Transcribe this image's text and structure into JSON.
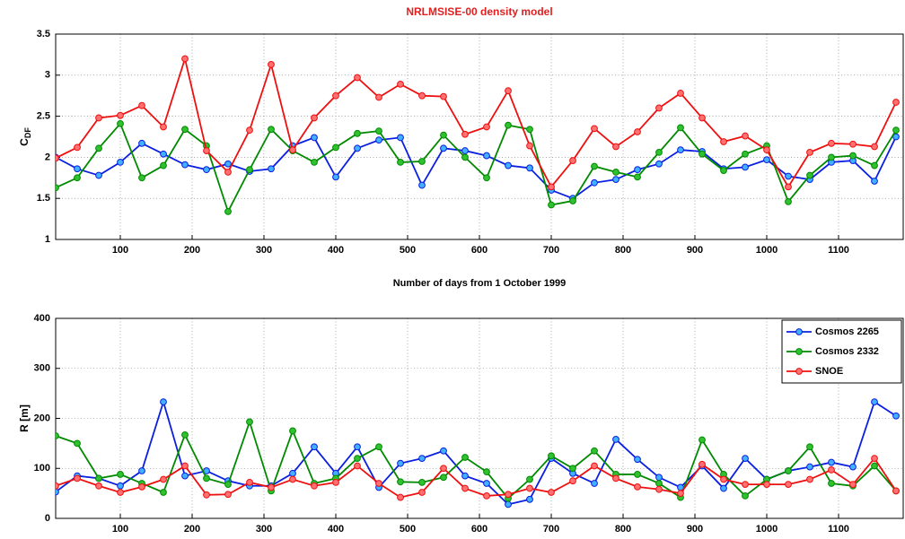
{
  "chart_data": [
    {
      "type": "line",
      "title": "NRLMSISE-00 density model",
      "xlabel": "Number of days from 1 October 1999",
      "ylabel": "C",
      "ylabel_sub": "DF",
      "x": [
        10,
        40,
        70,
        100,
        130,
        160,
        190,
        220,
        250,
        280,
        310,
        340,
        370,
        400,
        430,
        460,
        490,
        520,
        550,
        580,
        610,
        640,
        670,
        700,
        730,
        760,
        790,
        820,
        850,
        880,
        910,
        940,
        970,
        1000,
        1030,
        1060,
        1090,
        1120,
        1150,
        1180
      ],
      "xlim": [
        10,
        1190
      ],
      "xticks": [
        100,
        200,
        300,
        400,
        500,
        600,
        700,
        800,
        900,
        1000,
        1100
      ],
      "ylim": [
        1,
        3.5
      ],
      "yticks": [
        1,
        1.5,
        2,
        2.5,
        3,
        3.5
      ],
      "grid": true,
      "series": [
        {
          "name": "Cosmos 2265",
          "color": "#0a1fe0",
          "marker_color": "#40b0ff",
          "values": [
            2.0,
            1.86,
            1.78,
            1.94,
            2.17,
            2.04,
            1.91,
            1.85,
            1.92,
            1.83,
            1.86,
            2.14,
            2.24,
            1.76,
            2.11,
            2.21,
            2.24,
            1.66,
            2.11,
            2.08,
            2.02,
            1.9,
            1.87,
            1.6,
            1.5,
            1.69,
            1.73,
            1.85,
            1.92,
            2.09,
            2.07,
            1.86,
            1.88,
            1.97,
            1.77,
            1.73,
            1.94,
            1.96,
            1.71,
            2.25
          ]
        },
        {
          "name": "Cosmos 2332",
          "color": "#008a00",
          "marker_color": "#30c030",
          "values": [
            1.63,
            1.75,
            2.11,
            2.41,
            1.75,
            1.9,
            2.34,
            2.14,
            1.34,
            1.85,
            2.34,
            2.08,
            1.94,
            2.12,
            2.29,
            2.32,
            1.94,
            1.95,
            2.27,
            2.0,
            1.75,
            2.39,
            2.34,
            1.42,
            1.47,
            1.89,
            1.82,
            1.76,
            2.06,
            2.36,
            2.04,
            1.84,
            2.04,
            2.14,
            1.46,
            1.78,
            2.0,
            2.02,
            1.9,
            2.33
          ]
        },
        {
          "name": "SNOE",
          "color": "#ee1010",
          "marker_color": "#ff7070",
          "values": [
            1.99,
            2.12,
            2.48,
            2.51,
            2.63,
            2.37,
            3.2,
            2.08,
            1.82,
            2.33,
            3.13,
            2.09,
            2.48,
            2.75,
            2.97,
            2.73,
            2.89,
            2.75,
            2.74,
            2.28,
            2.37,
            2.81,
            2.14,
            1.64,
            1.96,
            2.35,
            2.13,
            2.31,
            2.6,
            2.78,
            2.48,
            2.19,
            2.26,
            2.09,
            1.64,
            2.06,
            2.17,
            2.16,
            2.13,
            2.67
          ]
        }
      ]
    },
    {
      "type": "line",
      "ylabel": "R [m]",
      "x": [
        10,
        40,
        70,
        100,
        130,
        160,
        190,
        220,
        250,
        280,
        310,
        340,
        370,
        400,
        430,
        460,
        490,
        520,
        550,
        580,
        610,
        640,
        670,
        700,
        730,
        760,
        790,
        820,
        850,
        880,
        910,
        940,
        970,
        1000,
        1030,
        1060,
        1090,
        1120,
        1150,
        1180
      ],
      "xlim": [
        10,
        1190
      ],
      "xticks": [
        100,
        200,
        300,
        400,
        500,
        600,
        700,
        800,
        900,
        1000,
        1100
      ],
      "ylim": [
        0,
        400
      ],
      "yticks": [
        0,
        100,
        200,
        300,
        400
      ],
      "grid": true,
      "legend": "upper right",
      "series": [
        {
          "name": "Cosmos 2265",
          "color": "#0a1fe0",
          "marker_color": "#40b0ff",
          "values": [
            53,
            85,
            80,
            65,
            95,
            233,
            85,
            95,
            75,
            65,
            65,
            90,
            143,
            90,
            143,
            62,
            110,
            120,
            135,
            85,
            70,
            28,
            38,
            120,
            90,
            70,
            158,
            118,
            82,
            62,
            105,
            60,
            120,
            78,
            95,
            103,
            112,
            103,
            233,
            205
          ]
        },
        {
          "name": "Cosmos 2332",
          "color": "#008a00",
          "marker_color": "#30c030",
          "values": [
            165,
            150,
            80,
            88,
            70,
            52,
            167,
            80,
            68,
            193,
            55,
            175,
            70,
            80,
            120,
            143,
            73,
            72,
            82,
            122,
            93,
            40,
            78,
            125,
            100,
            135,
            88,
            88,
            70,
            42,
            157,
            88,
            45,
            78,
            95,
            143,
            70,
            65,
            105,
            55
          ]
        },
        {
          "name": "SNOE",
          "color": "#ee1010",
          "marker_color": "#ff7070",
          "values": [
            65,
            80,
            65,
            52,
            63,
            78,
            105,
            47,
            48,
            72,
            62,
            78,
            65,
            72,
            105,
            70,
            42,
            52,
            100,
            60,
            45,
            48,
            60,
            52,
            75,
            105,
            80,
            63,
            58,
            50,
            108,
            78,
            68,
            68,
            68,
            78,
            97,
            68,
            120,
            55
          ]
        }
      ]
    }
  ]
}
